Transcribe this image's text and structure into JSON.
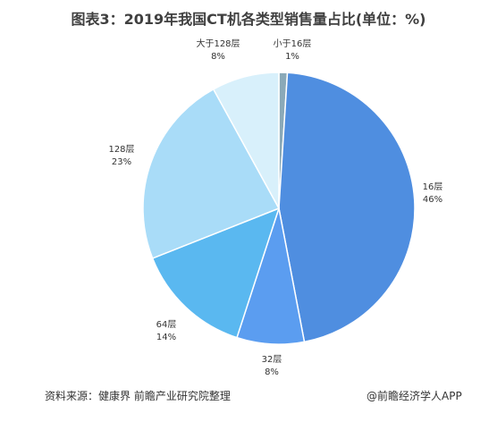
{
  "title": "图表3：2019年我国CT机各类型销售量占比(单位：%)",
  "footer": {
    "source": "资料来源：健康界 前瞻产业研究院整理",
    "brand": "@前瞻经济学人APP"
  },
  "chart_data": {
    "type": "pie",
    "unit": "%",
    "slices": [
      {
        "label": "小于16层",
        "value": 1,
        "display": "1%",
        "color": "#8aa9b8"
      },
      {
        "label": "16层",
        "value": 46,
        "display": "46%",
        "color": "#4f8ee0"
      },
      {
        "label": "32层",
        "value": 8,
        "display": "8%",
        "color": "#5b9df0"
      },
      {
        "label": "64层",
        "value": 14,
        "display": "14%",
        "color": "#5ab8f0"
      },
      {
        "label": "128层",
        "value": 23,
        "display": "23%",
        "color": "#a9dcf8"
      },
      {
        "label": "大于128层",
        "value": 8,
        "display": "8%",
        "color": "#d8f0fb"
      }
    ]
  }
}
